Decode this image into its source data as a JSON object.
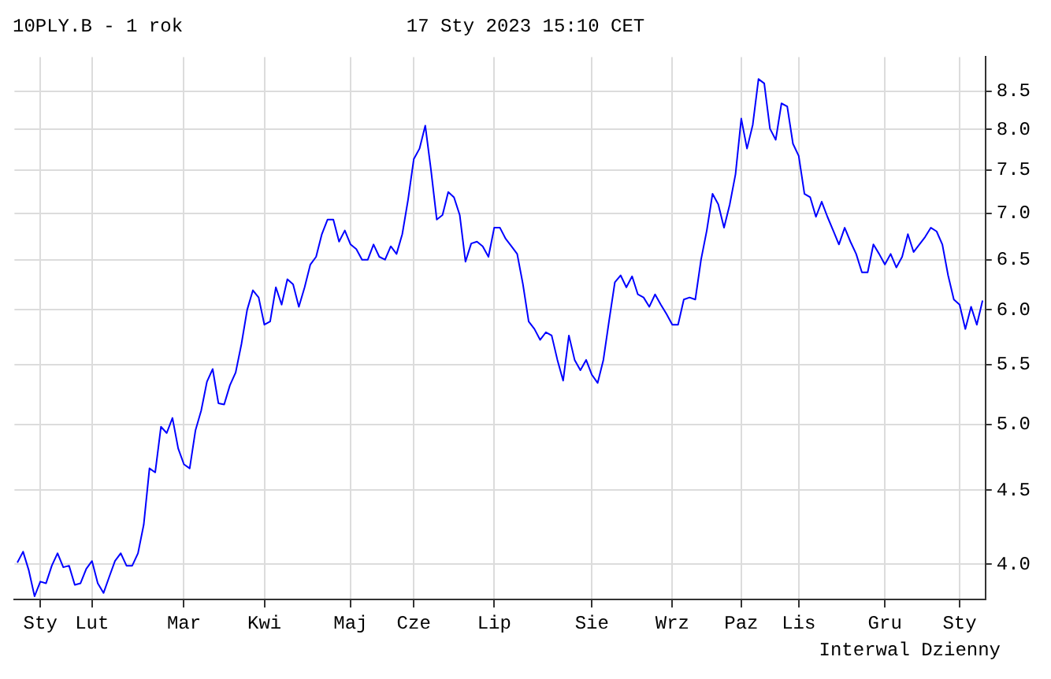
{
  "chart_data": {
    "type": "line",
    "title": "10PLY.B - 1 rok",
    "subtitle": "17 Sty 2023 15:10 CET",
    "annotations": [
      "Interwal Dzienny"
    ],
    "categories": [
      null,
      null,
      null,
      null,
      "Sty",
      null,
      null,
      null,
      null,
      null,
      null,
      null,
      null,
      "Lut",
      null,
      null,
      null,
      null,
      null,
      null,
      null,
      null,
      null,
      null,
      null,
      null,
      null,
      null,
      null,
      "Mar",
      null,
      null,
      null,
      null,
      null,
      null,
      null,
      null,
      null,
      null,
      null,
      null,
      null,
      "Kwi",
      null,
      null,
      null,
      null,
      null,
      null,
      null,
      null,
      null,
      null,
      null,
      null,
      null,
      null,
      "Maj",
      null,
      null,
      null,
      null,
      null,
      null,
      null,
      null,
      null,
      null,
      "Cze",
      null,
      null,
      null,
      null,
      null,
      null,
      null,
      null,
      null,
      null,
      null,
      null,
      null,
      "Lip",
      null,
      null,
      null,
      null,
      null,
      null,
      null,
      null,
      null,
      null,
      null,
      null,
      null,
      null,
      null,
      null,
      "Sie",
      null,
      null,
      null,
      null,
      null,
      null,
      null,
      null,
      null,
      null,
      null,
      null,
      null,
      "Wrz",
      null,
      null,
      null,
      null,
      null,
      null,
      null,
      null,
      null,
      null,
      null,
      "Paz",
      null,
      null,
      null,
      null,
      null,
      null,
      null,
      null,
      null,
      "Lis",
      null,
      null,
      null,
      null,
      null,
      null,
      null,
      null,
      null,
      null,
      null,
      null,
      null,
      null,
      "Gru",
      null,
      null,
      null,
      null,
      null,
      null,
      null,
      null,
      null,
      null,
      null,
      null,
      "Sty",
      null,
      null,
      null,
      null
    ],
    "series": [
      {
        "color": "#0000ff",
        "values": [
          4.01,
          4.08,
          3.96,
          3.8,
          3.89,
          3.88,
          3.99,
          4.07,
          3.98,
          3.99,
          3.87,
          3.88,
          3.97,
          4.02,
          3.88,
          3.82,
          3.92,
          4.02,
          4.07,
          3.99,
          3.99,
          4.07,
          4.26,
          4.66,
          4.63,
          4.98,
          4.93,
          5.05,
          4.81,
          4.69,
          4.66,
          4.95,
          5.11,
          5.35,
          5.46,
          5.17,
          5.16,
          5.32,
          5.43,
          5.68,
          6.0,
          6.19,
          6.12,
          5.86,
          5.89,
          6.22,
          6.05,
          6.3,
          6.25,
          6.03,
          6.22,
          6.45,
          6.53,
          6.77,
          6.93,
          6.93,
          6.69,
          6.81,
          6.66,
          6.61,
          6.5,
          6.5,
          6.66,
          6.53,
          6.5,
          6.64,
          6.56,
          6.77,
          7.15,
          7.63,
          7.76,
          8.05,
          7.5,
          6.93,
          6.98,
          7.24,
          7.18,
          6.98,
          6.48,
          6.67,
          6.69,
          6.64,
          6.53,
          6.84,
          6.84,
          6.72,
          6.64,
          6.56,
          6.25,
          5.89,
          5.82,
          5.72,
          5.79,
          5.76,
          5.54,
          5.36,
          5.76,
          5.54,
          5.45,
          5.54,
          5.41,
          5.34,
          5.54,
          5.9,
          6.27,
          6.34,
          6.22,
          6.33,
          6.15,
          6.12,
          6.03,
          6.15,
          6.05,
          5.96,
          5.86,
          5.86,
          6.1,
          6.12,
          6.1,
          6.5,
          6.81,
          7.22,
          7.1,
          6.84,
          7.1,
          7.45,
          8.14,
          7.76,
          8.06,
          8.67,
          8.61,
          8.01,
          7.87,
          8.34,
          8.3,
          7.82,
          7.67,
          7.22,
          7.18,
          6.96,
          7.13,
          6.96,
          6.81,
          6.66,
          6.84,
          6.69,
          6.56,
          6.37,
          6.37,
          6.66,
          6.56,
          6.45,
          6.56,
          6.42,
          6.53,
          6.77,
          6.58,
          6.66,
          6.74,
          6.84,
          6.8,
          6.66,
          6.34,
          6.1,
          6.05,
          5.82,
          6.03,
          5.86,
          6.09
        ]
      }
    ],
    "ylim": [
      3.78,
      8.98
    ],
    "yticks": [
      {
        "value": 4,
        "label": "4.0"
      },
      {
        "value": 4.5,
        "label": "4.5"
      },
      {
        "value": 5,
        "label": "5.0"
      },
      {
        "value": 5.5,
        "label": "5.5"
      },
      {
        "value": 6,
        "label": "6.0"
      },
      {
        "value": 6.5,
        "label": "6.5"
      },
      {
        "value": 7,
        "label": "7.0"
      },
      {
        "value": 7.5,
        "label": "7.5"
      },
      {
        "value": 8,
        "label": "8.0"
      },
      {
        "value": 8.5,
        "label": "8.5"
      }
    ],
    "log": "y",
    "grid": true,
    "legend": false,
    "marker": "none",
    "line_style": "solid"
  }
}
